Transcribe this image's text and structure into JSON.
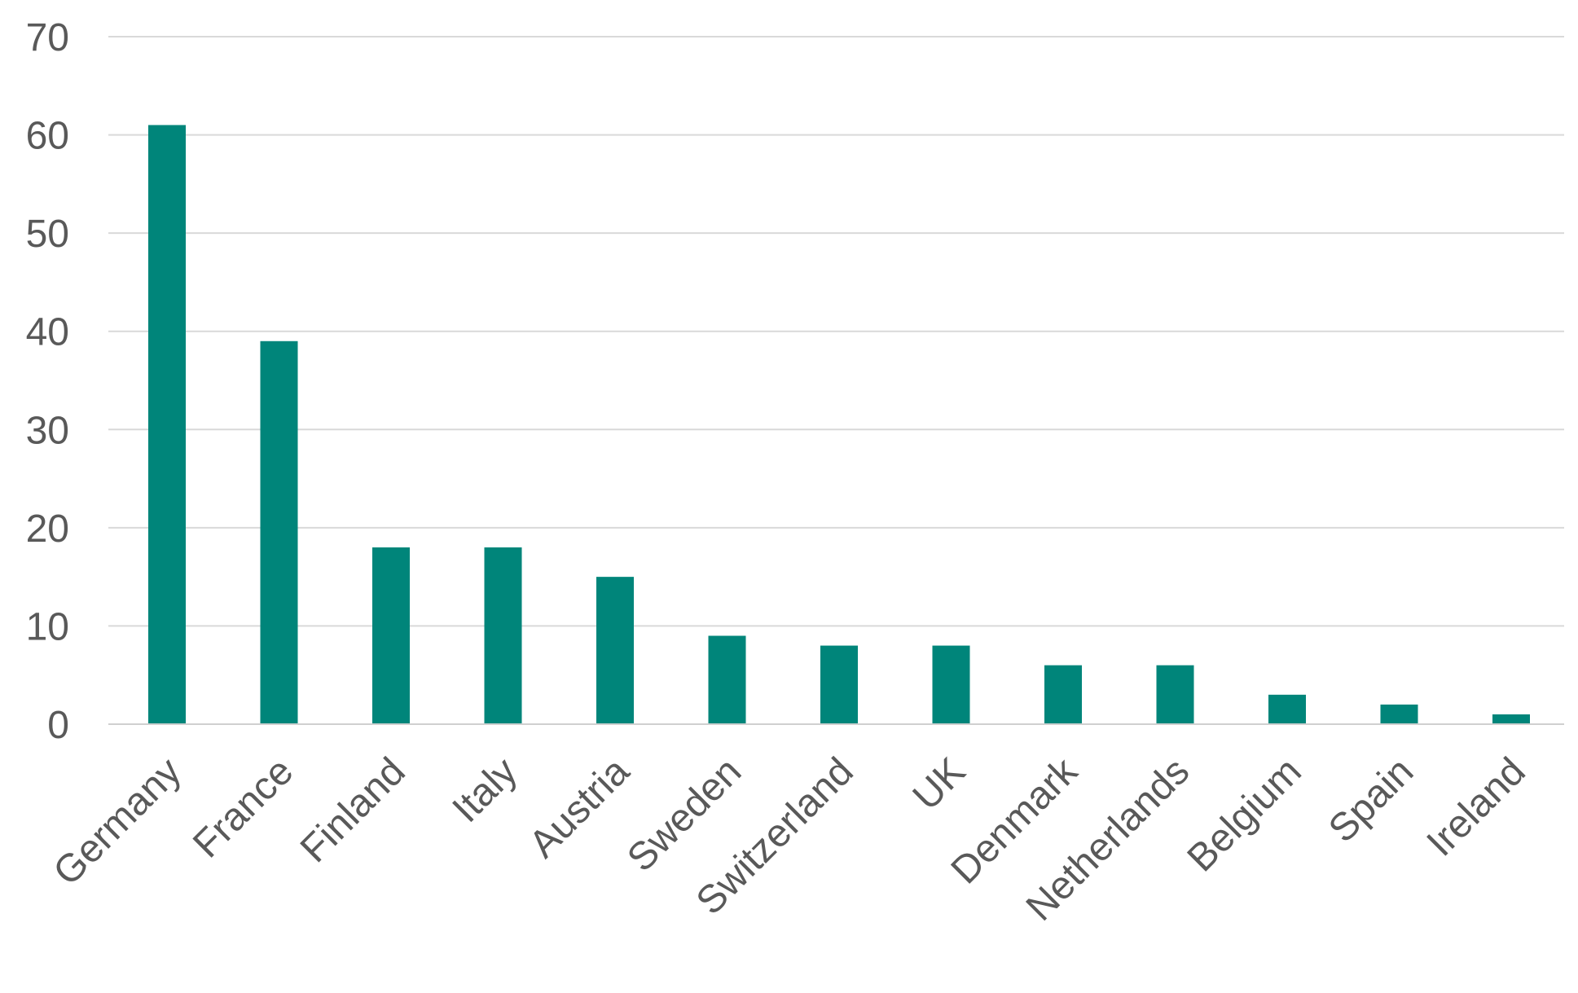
{
  "chart_data": {
    "type": "bar",
    "title": "",
    "xlabel": "",
    "ylabel": "",
    "categories": [
      "Germany",
      "France",
      "Finland",
      "Italy",
      "Austria",
      "Sweden",
      "Switzerland",
      "UK",
      "Denmark",
      "Netherlands",
      "Belgium",
      "Spain",
      "Ireland"
    ],
    "values": [
      61,
      39,
      18,
      18,
      15,
      9,
      8,
      8,
      6,
      6,
      3,
      2,
      1
    ],
    "ylim": [
      0,
      70
    ],
    "yticks": [
      0,
      10,
      20,
      30,
      40,
      50,
      60,
      70
    ],
    "grid": true,
    "legend": "none",
    "bar_color": "#00857a"
  }
}
